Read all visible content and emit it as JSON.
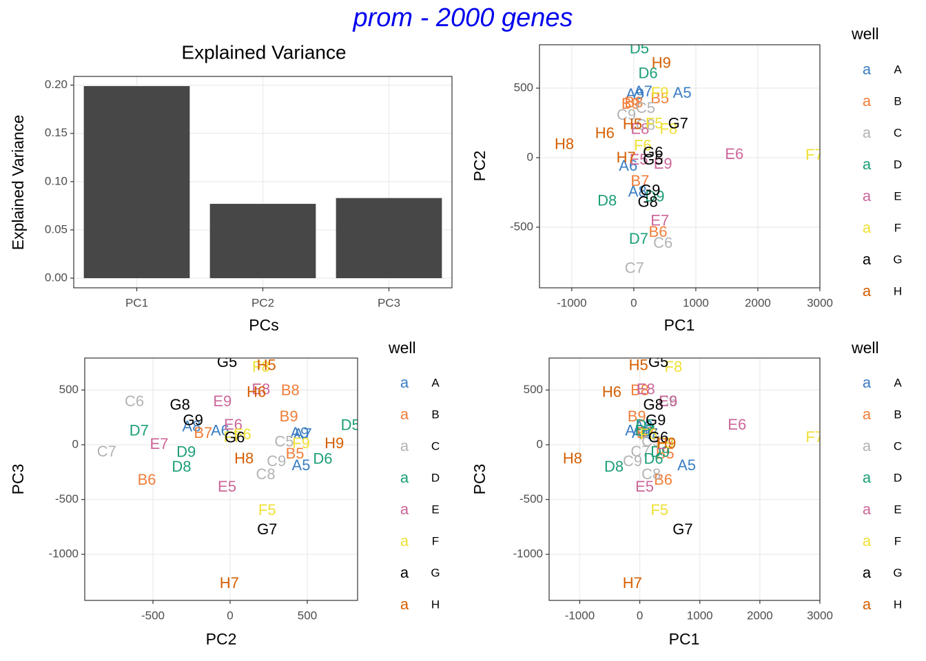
{
  "title": "prom - 2000 genes",
  "chart_data": [
    {
      "type": "bar",
      "title": "Explained Variance",
      "x_label": "PCs",
      "y_label": "Explained Variance",
      "categories": [
        "PC1",
        "PC2",
        "PC3"
      ],
      "values": [
        0.199,
        0.077,
        0.083
      ],
      "color": "#474747",
      "ylim": [
        -0.01,
        0.209
      ],
      "yticks": [
        {
          "value": 0,
          "label": "0.00"
        },
        {
          "value": 0.05,
          "label": "0.05"
        },
        {
          "value": 0.1,
          "label": "0.10"
        },
        {
          "value": 0.15,
          "label": "0.15"
        },
        {
          "value": 0.2,
          "label": "0.20"
        }
      ],
      "grid": true
    },
    {
      "type": "scatter",
      "x_label": "PC1",
      "y_label": "PC2",
      "legend_title": "well",
      "legend_key_text": "a",
      "xlim": [
        -1520,
        3000
      ],
      "ylim": [
        -936,
        812
      ],
      "xticks": [
        -1000,
        0,
        1000,
        2000,
        3000
      ],
      "yticks": [
        -500,
        0,
        500
      ],
      "grid": true,
      "series": [
        {
          "name": "A",
          "color": "#3A7DC2",
          "labels": [
            "A5",
            "A6",
            "A7",
            "A8",
            "A9"
          ],
          "x": [
            780,
            -90,
            150,
            60,
            20
          ],
          "y": [
            460,
            -65,
            470,
            -250,
            450
          ]
        },
        {
          "name": "B",
          "color": "#F07E3A",
          "labels": [
            "B5",
            "B6",
            "B7",
            "B8",
            "B9"
          ],
          "x": [
            420,
            390,
            100,
            0,
            -50
          ],
          "y": [
            420,
            -540,
            -175,
            390,
            380
          ]
        },
        {
          "name": "C",
          "color": "#B3B3B3",
          "labels": [
            "C5",
            "C6",
            "C7",
            "C8",
            "C9"
          ],
          "x": [
            190,
            470,
            10,
            190,
            -120
          ],
          "y": [
            350,
            -620,
            -800,
            230,
            300
          ]
        },
        {
          "name": "D",
          "color": "#1B9E77",
          "labels": [
            "D5",
            "D6",
            "D7",
            "D8",
            "D9"
          ],
          "x": [
            90,
            230,
            78,
            -430,
            340
          ],
          "y": [
            780,
            600,
            -590,
            -315,
            -285
          ]
        },
        {
          "name": "E",
          "color": "#CC6699",
          "labels": [
            "E5",
            "E6",
            "E7",
            "E8",
            "E9"
          ],
          "x": [
            80,
            1620,
            420,
            100,
            470
          ],
          "y": [
            -20,
            20,
            -460,
            200,
            -50
          ]
        },
        {
          "name": "F",
          "color": "#F0E034",
          "labels": [
            "F5",
            "F6",
            "F7",
            "F8",
            "F9"
          ],
          "x": [
            330,
            144,
            2910,
            560,
            420
          ],
          "y": [
            240,
            80,
            15,
            200,
            460
          ]
        },
        {
          "name": "G",
          "color": "#000000",
          "labels": [
            "G5",
            "G6",
            "G7",
            "G8",
            "G9"
          ],
          "x": [
            310,
            310,
            715,
            225,
            265
          ],
          "y": [
            -20,
            30,
            240,
            -325,
            -240
          ]
        },
        {
          "name": "H",
          "color": "#D55E00",
          "labels": [
            "H5",
            "H6",
            "H7",
            "H8",
            "H9"
          ],
          "x": [
            -22,
            -467,
            -124,
            -1120,
            444
          ],
          "y": [
            235,
            170,
            -5,
            90,
            675
          ]
        }
      ]
    },
    {
      "type": "scatter",
      "x_label": "PC2",
      "y_label": "PC3",
      "legend_title": "well",
      "legend_key_text": "a",
      "xlim": [
        -942,
        826
      ],
      "ylim": [
        -1421,
        792
      ],
      "xticks": [
        -500,
        0,
        500
      ],
      "yticks": [
        -1000,
        -500,
        0,
        500
      ],
      "grid": true,
      "series": [
        {
          "name": "A",
          "color": "#3A7DC2",
          "labels": [
            "A5",
            "A6",
            "A7",
            "A8",
            "A9"
          ],
          "x": [
            460,
            -65,
            470,
            -250,
            450
          ],
          "y": [
            -195,
            120,
            90,
            160,
            100
          ]
        },
        {
          "name": "B",
          "color": "#F07E3A",
          "labels": [
            "B5",
            "B6",
            "B7",
            "B8",
            "B9"
          ],
          "x": [
            420,
            -540,
            -175,
            390,
            380
          ],
          "y": [
            -90,
            -327,
            100,
            490,
            250
          ]
        },
        {
          "name": "C",
          "color": "#B3B3B3",
          "labels": [
            "C5",
            "C6",
            "C7",
            "C8",
            "C9"
          ],
          "x": [
            350,
            -620,
            -800,
            230,
            300
          ],
          "y": [
            20,
            390,
            -70,
            -277,
            -157
          ]
        },
        {
          "name": "D",
          "color": "#1B9E77",
          "labels": [
            "D5",
            "D6",
            "D7",
            "D8",
            "D9"
          ],
          "x": [
            780,
            600,
            -590,
            -315,
            -285
          ],
          "y": [
            170,
            -138,
            120,
            -208,
            -75
          ]
        },
        {
          "name": "E",
          "color": "#CC6699",
          "labels": [
            "E5",
            "E6",
            "E7",
            "E8",
            "E9"
          ],
          "x": [
            -20,
            20,
            -460,
            200,
            -50
          ],
          "y": [
            -390,
            176,
            0,
            497,
            390
          ]
        },
        {
          "name": "F",
          "color": "#F0E034",
          "labels": [
            "F5",
            "F6",
            "F7",
            "F8",
            "F9"
          ],
          "x": [
            240,
            80,
            15,
            200,
            460
          ],
          "y": [
            -604,
            88,
            63,
            704,
            6
          ]
        },
        {
          "name": "G",
          "color": "#000000",
          "labels": [
            "G5",
            "G6",
            "G7",
            "G8",
            "G9"
          ],
          "x": [
            -20,
            30,
            240,
            -325,
            -240
          ],
          "y": [
            748,
            57,
            -780,
            358,
            214
          ]
        },
        {
          "name": "H",
          "color": "#D55E00",
          "labels": [
            "H5",
            "H6",
            "H7",
            "H8",
            "H9"
          ],
          "x": [
            235,
            170,
            -5,
            90,
            675
          ],
          "y": [
            717,
            472,
            -1270,
            -132,
            6
          ]
        }
      ]
    },
    {
      "type": "scatter",
      "x_label": "PC1",
      "y_label": "PC3",
      "legend_title": "well",
      "legend_key_text": "a",
      "xlim": [
        -1510,
        3000
      ],
      "ylim": [
        -1421,
        792
      ],
      "xticks": [
        -1000,
        0,
        1000,
        2000,
        3000
      ],
      "yticks": [
        -1000,
        -500,
        0,
        500
      ],
      "grid": true,
      "series": [
        {
          "name": "A",
          "color": "#3A7DC2",
          "labels": [
            "A5",
            "A6",
            "A7",
            "A8",
            "A9"
          ],
          "x": [
            780,
            -90,
            150,
            60,
            20
          ],
          "y": [
            -195,
            120,
            90,
            160,
            100
          ]
        },
        {
          "name": "B",
          "color": "#F07E3A",
          "labels": [
            "B5",
            "B6",
            "B7",
            "B8",
            "B9"
          ],
          "x": [
            420,
            390,
            100,
            0,
            -50
          ],
          "y": [
            -90,
            -327,
            100,
            490,
            250
          ]
        },
        {
          "name": "C",
          "color": "#B3B3B3",
          "labels": [
            "C5",
            "C6",
            "C7",
            "C8",
            "C9"
          ],
          "x": [
            190,
            470,
            10,
            190,
            -120
          ],
          "y": [
            20,
            390,
            -70,
            -277,
            -157
          ]
        },
        {
          "name": "D",
          "color": "#1B9E77",
          "labels": [
            "D5",
            "D6",
            "D7",
            "D8",
            "D9"
          ],
          "x": [
            90,
            230,
            78,
            -430,
            340
          ],
          "y": [
            170,
            -138,
            120,
            -208,
            -75
          ]
        },
        {
          "name": "E",
          "color": "#CC6699",
          "labels": [
            "E5",
            "E6",
            "E7",
            "E8",
            "E9"
          ],
          "x": [
            80,
            1620,
            420,
            100,
            470
          ],
          "y": [
            -390,
            176,
            0,
            497,
            390
          ]
        },
        {
          "name": "F",
          "color": "#F0E034",
          "labels": [
            "F5",
            "F6",
            "F7",
            "F8",
            "F9"
          ],
          "x": [
            330,
            144,
            2910,
            560,
            420
          ],
          "y": [
            -604,
            88,
            63,
            704,
            6
          ]
        },
        {
          "name": "G",
          "color": "#000000",
          "labels": [
            "G5",
            "G6",
            "G7",
            "G8",
            "G9"
          ],
          "x": [
            310,
            310,
            715,
            225,
            265
          ],
          "y": [
            748,
            57,
            -780,
            358,
            214
          ]
        },
        {
          "name": "H",
          "color": "#D55E00",
          "labels": [
            "H5",
            "H6",
            "H7",
            "H8",
            "H9"
          ],
          "x": [
            -22,
            -467,
            -124,
            -1120,
            444
          ],
          "y": [
            717,
            472,
            -1270,
            -132,
            6
          ]
        }
      ]
    }
  ]
}
